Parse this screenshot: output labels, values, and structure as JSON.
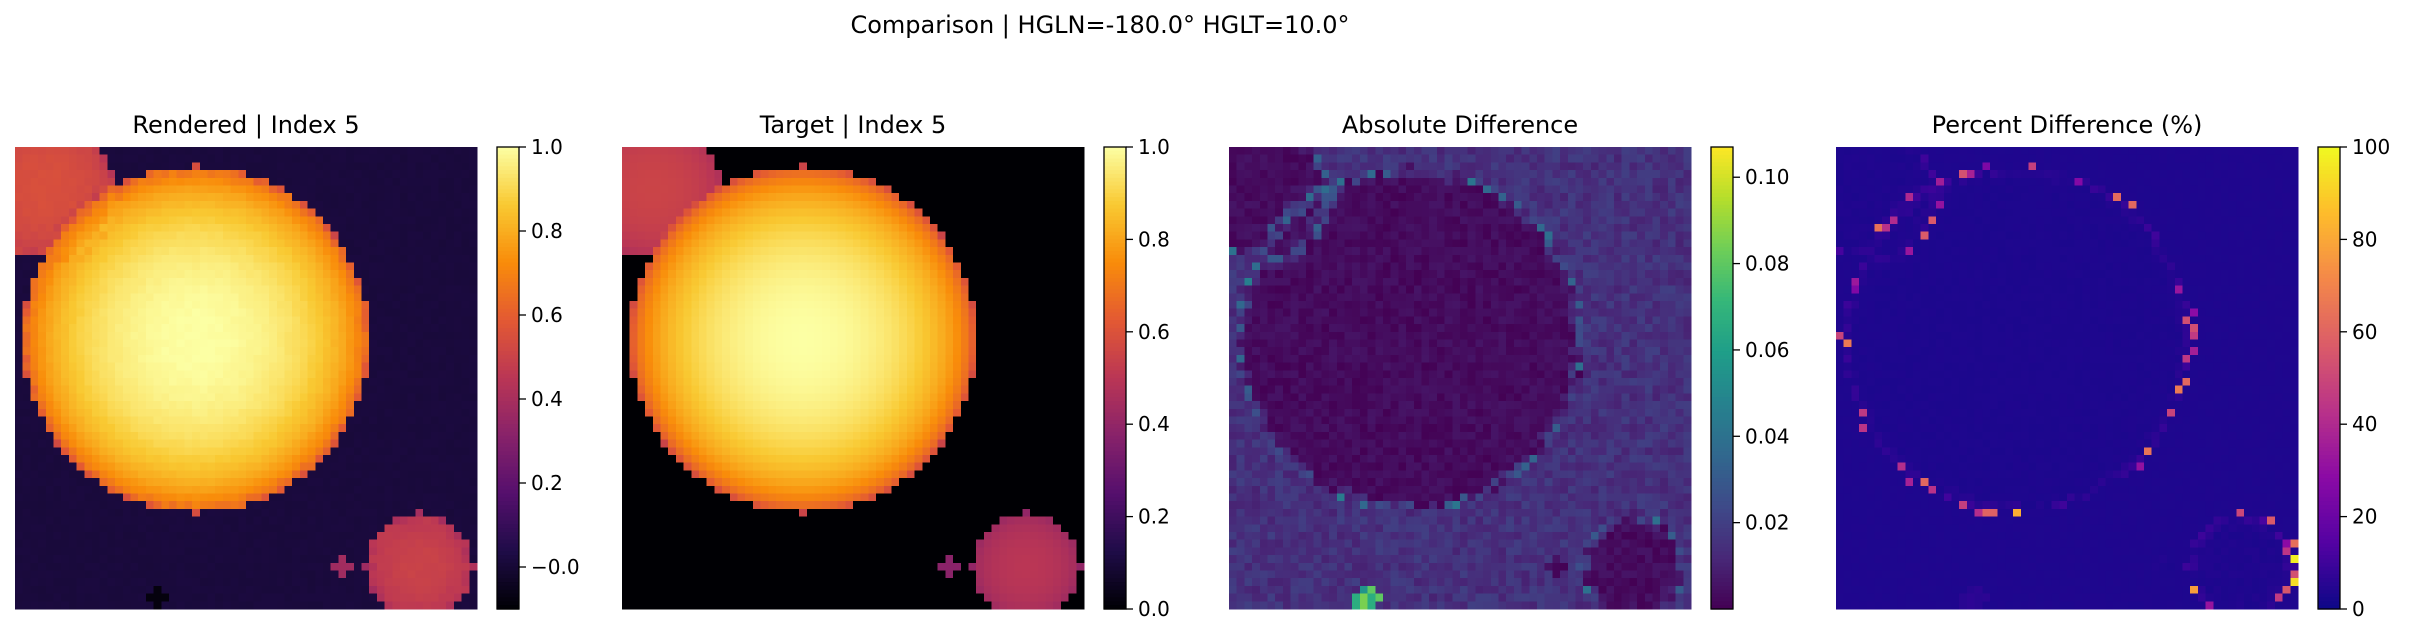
{
  "suptitle": "Comparison | HGLN=-180.0° HGLT=10.0°",
  "chart_data": [
    {
      "type": "heatmap",
      "title": "Rendered | Index 5",
      "colormap": "inferno",
      "colorbar": {
        "min": -0.1,
        "max": 1.0,
        "ticks": [
          -0.0,
          0.2,
          0.4,
          0.6,
          0.8,
          1.0
        ],
        "tick_labels": [
          "−0.0",
          "0.2",
          "0.4",
          "0.6",
          "0.8",
          "1.0"
        ]
      },
      "content": "synthetic disk image: large bright limb-darkened disk centered-left, small disk upper-left, small disk lower-right, faint noisy background"
    },
    {
      "type": "heatmap",
      "title": "Target | Index 5",
      "colormap": "inferno",
      "colorbar": {
        "min": 0.0,
        "max": 1.0,
        "ticks": [
          0.0,
          0.2,
          0.4,
          0.6,
          0.8,
          1.0
        ],
        "tick_labels": [
          "0.0",
          "0.2",
          "0.4",
          "0.6",
          "0.8",
          "1.0"
        ]
      },
      "content": "same three disks on a zero (black) background"
    },
    {
      "type": "heatmap",
      "title": "Absolute Difference",
      "colormap": "viridis",
      "colorbar": {
        "min": 0.0,
        "max": 0.107,
        "ticks": [
          0.02,
          0.04,
          0.06,
          0.08,
          0.1
        ],
        "tick_labels": [
          "0.02",
          "0.04",
          "0.06",
          "0.08",
          "0.10"
        ]
      },
      "content": "low noisy residual with brighter ring along the disk edges"
    },
    {
      "type": "heatmap",
      "title": "Percent Difference (%)",
      "colormap": "plasma",
      "colorbar": {
        "min": 0,
        "max": 100,
        "ticks": [
          0,
          20,
          40,
          60,
          80,
          100
        ],
        "tick_labels": [
          "0",
          "20",
          "40",
          "60",
          "80",
          "100"
        ]
      },
      "content": "near zero everywhere, scattered higher pixels along disk edges"
    }
  ]
}
